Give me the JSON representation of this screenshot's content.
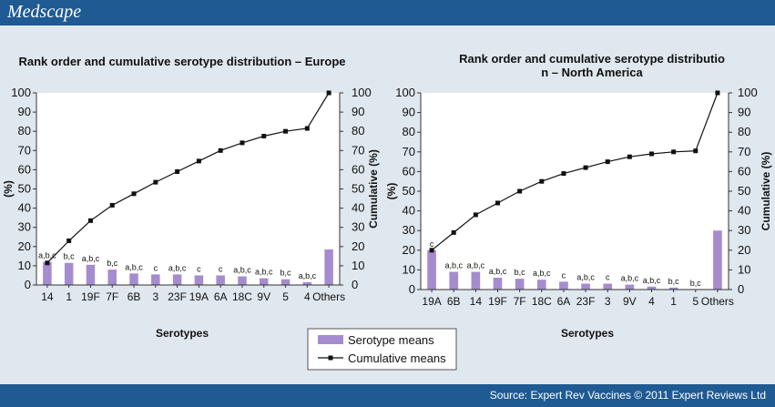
{
  "header": {
    "brand": "Medscape"
  },
  "footer": {
    "source": "Source: Expert Rev Vaccines © 2011 Expert Reviews Ltd"
  },
  "legend": {
    "bar_label": "Serotype means",
    "line_label": "Cumulative means"
  },
  "colors": {
    "bar": "#a58ccf",
    "line": "#111111",
    "header": "#1f5a93",
    "background": "#dfe8ee"
  },
  "chart_data": [
    {
      "type": "bar",
      "title": "Rank order and cumulative serotype distribution – Europe",
      "xlabel": "Serotypes",
      "ylabel": "(%)",
      "y2label": "Cumulative (%)",
      "ylim": [
        0,
        100
      ],
      "y2lim": [
        0,
        100
      ],
      "yticks": [
        0,
        10,
        20,
        30,
        40,
        50,
        60,
        70,
        80,
        90,
        100
      ],
      "categories": [
        "14",
        "1",
        "19F",
        "7F",
        "6B",
        "3",
        "23F",
        "19A",
        "6A",
        "18C",
        "9V",
        "5",
        "4",
        "Others"
      ],
      "series": [
        {
          "name": "Serotype means",
          "type": "bar",
          "values": [
            12,
            11.5,
            10.5,
            8,
            6,
            5.5,
            5.5,
            5,
            5,
            4.5,
            3.5,
            3,
            1.5,
            18.5
          ],
          "labels": [
            "a,b,c",
            "b,c",
            "a,b,c",
            "b,c",
            "a,b,c",
            "c",
            "a,b,c",
            "c",
            "c",
            "a,b,c",
            "a,b,c",
            "b,c",
            "a,b,c",
            ""
          ]
        },
        {
          "name": "Cumulative means",
          "type": "line",
          "values": [
            11.5,
            23,
            33.5,
            41.5,
            47.5,
            53.5,
            59,
            64.5,
            70,
            74,
            77.5,
            80,
            81.5,
            100
          ]
        }
      ]
    },
    {
      "type": "bar",
      "title": "Rank order and cumulative serotype distribution – North America",
      "xlabel": "Serotypes",
      "ylabel": "(%)",
      "y2label": "Cumulative (%)",
      "ylim": [
        0,
        100
      ],
      "y2lim": [
        0,
        100
      ],
      "yticks": [
        0,
        10,
        20,
        30,
        40,
        50,
        60,
        70,
        80,
        90,
        100
      ],
      "categories": [
        "19A",
        "6B",
        "14",
        "19F",
        "7F",
        "18C",
        "6A",
        "23F",
        "3",
        "9V",
        "4",
        "1",
        "5",
        "Others"
      ],
      "series": [
        {
          "name": "Serotype means",
          "type": "bar",
          "values": [
            20,
            9,
            9,
            6,
            5.5,
            5,
            4,
            3,
            3,
            2.5,
            1.5,
            1,
            0,
            30
          ],
          "labels": [
            "c",
            "a,b,c",
            "a,b,c",
            "a,b,c",
            "b,c",
            "a,b,c",
            "c",
            "a,b,c",
            "c",
            "a,b,c",
            "a,b,c",
            "b,c",
            "b,c",
            ""
          ]
        },
        {
          "name": "Cumulative means",
          "type": "line",
          "values": [
            20,
            29,
            38,
            44,
            50,
            55,
            59,
            62,
            65,
            67.5,
            69,
            70,
            70.5,
            100
          ]
        }
      ]
    }
  ]
}
